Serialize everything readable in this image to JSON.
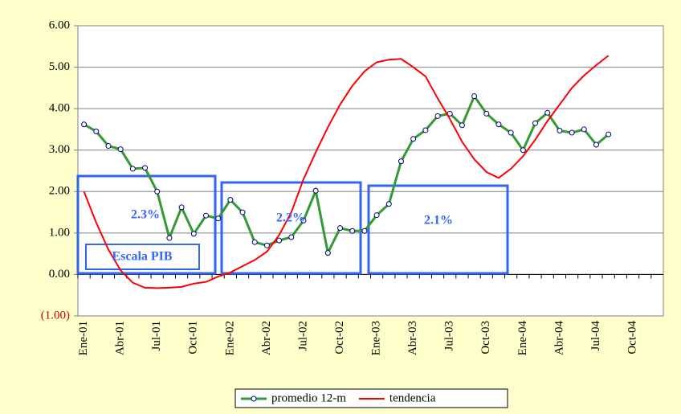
{
  "chart_data": {
    "type": "line",
    "categories": [
      "Ene-01",
      null,
      null,
      "Abr-01",
      null,
      null,
      "Jul-01",
      null,
      null,
      "Oct-01",
      null,
      null,
      "Ene-02",
      null,
      null,
      "Abr-02",
      null,
      null,
      "Jul-02",
      null,
      null,
      "Oct-02",
      null,
      null,
      "Ene-03",
      null,
      null,
      "Abr-03",
      null,
      null,
      "Jul-03",
      null,
      null,
      "Oct-03",
      null,
      null,
      "Ene-04",
      null,
      null,
      "Abr-04",
      null,
      null,
      "Jul-04",
      null,
      null,
      "Oct-04",
      null,
      null
    ],
    "series": [
      {
        "name": "promedio 12-m",
        "color": "#339933",
        "marker": true,
        "values": [
          3.62,
          3.45,
          3.1,
          3.02,
          2.55,
          2.57,
          2.0,
          0.88,
          1.62,
          0.98,
          1.42,
          1.35,
          1.8,
          1.5,
          0.78,
          0.7,
          0.82,
          0.9,
          1.3,
          2.02,
          0.52,
          1.12,
          1.05,
          1.05,
          1.43,
          1.7,
          2.73,
          3.27,
          3.48,
          3.82,
          3.88,
          3.6,
          4.3,
          3.88,
          3.62,
          3.42,
          3.0,
          3.65,
          3.9,
          3.47,
          3.42,
          3.5,
          3.13,
          3.38,
          null,
          null,
          null,
          null
        ]
      },
      {
        "name": "tendencia",
        "color": "#ff0000",
        "marker": false,
        "values": [
          2.0,
          1.25,
          0.6,
          0.1,
          -0.2,
          -0.32,
          -0.33,
          -0.32,
          -0.3,
          -0.22,
          -0.18,
          -0.05,
          0.05,
          0.2,
          0.35,
          0.55,
          0.95,
          1.5,
          2.3,
          2.95,
          3.55,
          4.1,
          4.55,
          4.9,
          5.12,
          5.18,
          5.2,
          5.0,
          4.78,
          4.25,
          3.75,
          3.2,
          2.78,
          2.47,
          2.33,
          2.55,
          2.85,
          3.25,
          3.7,
          4.1,
          4.5,
          4.8,
          5.05,
          5.28,
          null,
          null,
          null,
          null
        ]
      }
    ],
    "ylim": [
      -1,
      6
    ],
    "yticks": [
      {
        "value": -1,
        "label": "(1.00)"
      },
      {
        "value": 0,
        "label": "0.00"
      },
      {
        "value": 1,
        "label": "1.00"
      },
      {
        "value": 2,
        "label": "2.00"
      },
      {
        "value": 3,
        "label": "3.00"
      },
      {
        "value": 4,
        "label": "4.00"
      },
      {
        "value": 5,
        "label": "5.00"
      },
      {
        "value": 6,
        "label": "6.00"
      }
    ],
    "negative_tick_color": "#cc0000",
    "grid": true,
    "legend": "bottom",
    "annotations": [
      "2.3%",
      "2.2%",
      "2.1%",
      "Escala PIB"
    ]
  }
}
